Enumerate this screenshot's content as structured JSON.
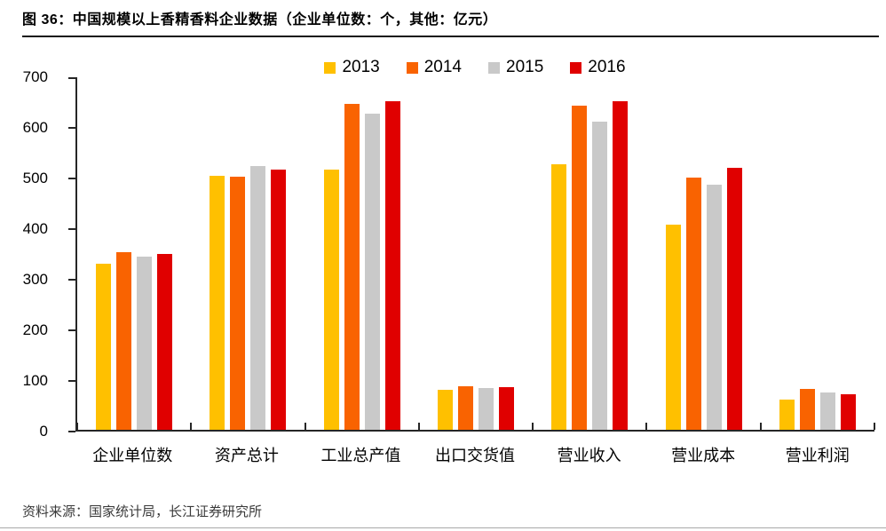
{
  "figure": {
    "title": "图 36：中国规模以上香精香料企业数据（企业单位数：个，其他：亿元）",
    "source": "资料来源：国家统计局，长江证券研究所"
  },
  "chart_data": {
    "type": "bar",
    "title": "中国规模以上香精香料企业数据（企业单位数：个，其他：亿元）",
    "categories": [
      "企业单位数",
      "资产总计",
      "工业总产值",
      "出口交货值",
      "营业收入",
      "营业成本",
      "营业利润"
    ],
    "series": [
      {
        "name": "2013",
        "color": "#FFC000",
        "values": [
          330,
          505,
          516,
          80,
          527,
          408,
          60
        ]
      },
      {
        "name": "2014",
        "color": "#F96301",
        "values": [
          352,
          503,
          648,
          87,
          643,
          500,
          81
        ]
      },
      {
        "name": "2015",
        "color": "#C9C9C9",
        "values": [
          344,
          523,
          627,
          83,
          611,
          486,
          74
        ]
      },
      {
        "name": "2016",
        "color": "#E00000",
        "values": [
          350,
          517,
          653,
          85,
          652,
          520,
          70
        ]
      }
    ],
    "xlabel": "",
    "ylabel": "",
    "ylim": [
      0,
      700
    ],
    "ytick_step": 100,
    "grid": false,
    "legend_position": "top"
  }
}
